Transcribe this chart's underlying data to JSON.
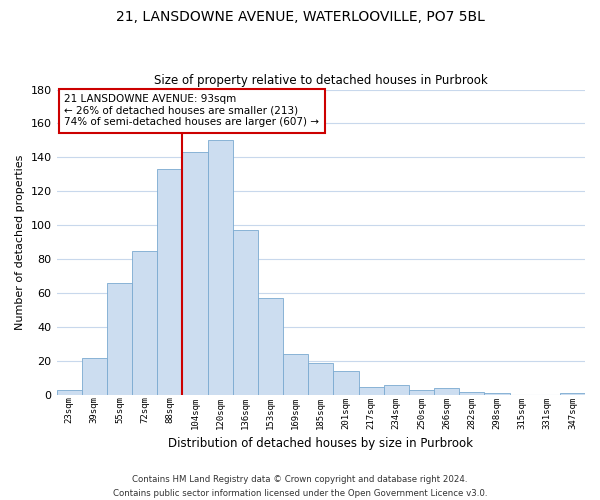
{
  "title": "21, LANSDOWNE AVENUE, WATERLOOVILLE, PO7 5BL",
  "subtitle": "Size of property relative to detached houses in Purbrook",
  "xlabel": "Distribution of detached houses by size in Purbrook",
  "ylabel": "Number of detached properties",
  "bar_labels": [
    "23sqm",
    "39sqm",
    "55sqm",
    "72sqm",
    "88sqm",
    "104sqm",
    "120sqm",
    "136sqm",
    "153sqm",
    "169sqm",
    "185sqm",
    "201sqm",
    "217sqm",
    "234sqm",
    "250sqm",
    "266sqm",
    "282sqm",
    "298sqm",
    "315sqm",
    "331sqm",
    "347sqm"
  ],
  "bar_values": [
    3,
    22,
    66,
    85,
    133,
    143,
    150,
    97,
    57,
    24,
    19,
    14,
    5,
    6,
    3,
    4,
    2,
    1,
    0,
    0,
    1
  ],
  "bar_color": "#ccddf0",
  "bar_edge_color": "#7aaad0",
  "vline_color": "#cc0000",
  "ylim": [
    0,
    180
  ],
  "yticks": [
    0,
    20,
    40,
    60,
    80,
    100,
    120,
    140,
    160,
    180
  ],
  "annotation_title": "21 LANSDOWNE AVENUE: 93sqm",
  "annotation_line1": "← 26% of detached houses are smaller (213)",
  "annotation_line2": "74% of semi-detached houses are larger (607) →",
  "annotation_box_color": "#ffffff",
  "annotation_box_edge": "#cc0000",
  "footer1": "Contains HM Land Registry data © Crown copyright and database right 2024.",
  "footer2": "Contains public sector information licensed under the Open Government Licence v3.0.",
  "background_color": "#ffffff",
  "grid_color": "#c8d8ec"
}
